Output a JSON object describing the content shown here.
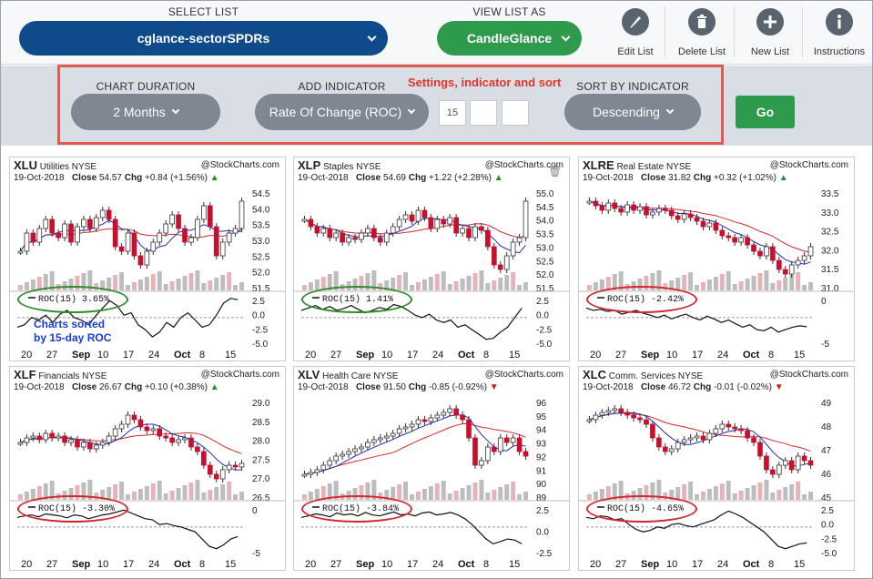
{
  "topbar": {
    "select_list_caption": "SELECT LIST",
    "select_list_value": "cglance-sectorSPDRs",
    "view_as_caption": "VIEW LIST AS",
    "view_as_value": "CandleGlance",
    "tools": [
      {
        "label": "Edit List",
        "icon": "pencil-icon"
      },
      {
        "label": "Delete List",
        "icon": "trash-icon"
      },
      {
        "label": "New List",
        "icon": "plus-icon"
      },
      {
        "label": "Instructions",
        "icon": "info-icon"
      }
    ],
    "colors": {
      "select": "#0f4a8a",
      "view": "#2e9a4c",
      "tool": "#5a6470"
    }
  },
  "settings": {
    "duration_caption": "CHART DURATION",
    "duration_value": "2 Months",
    "indicator_caption": "ADD INDICATOR",
    "indicator_value": "Rate Of Change (ROC)",
    "param1": "15",
    "param2": "",
    "param3": "",
    "sort_caption": "SORT BY INDICATOR",
    "sort_value": "Descending",
    "go_label": "Go",
    "annotation": "Settings, indicator and sort"
  },
  "note": {
    "line1": "Charts sorted",
    "line2": "by 15-day ROC"
  },
  "charts": [
    {
      "sym": "XLU",
      "name": "Utilities",
      "exch": "NYSE",
      "date": "19-Oct-2018",
      "close_label": "Close",
      "close": "54.57",
      "chg_label": "Chg",
      "chg": "+0.84 (+1.56%)",
      "dir": "up",
      "brand": "@StockCharts.com",
      "roc": "ROC(15) 3.65%",
      "oval": "green",
      "price_ticks": [
        "54.5",
        "54.0",
        "53.5",
        "53.0",
        "52.5",
        "52.0",
        "51.5"
      ],
      "roc_ticks": [
        "2.5",
        "0.0",
        "-2.5",
        "-5.0"
      ],
      "x_ticks": [
        "20",
        "27",
        "Sep",
        "10",
        "17",
        "24",
        "Oct",
        "8",
        "15"
      ],
      "trend": [
        0.35,
        0.55,
        0.45,
        0.6,
        0.7,
        0.55,
        0.5,
        0.65,
        0.45,
        0.62,
        0.7,
        0.6,
        0.72,
        0.8,
        0.7,
        0.4,
        0.35,
        0.55,
        0.3,
        0.2,
        0.35,
        0.45,
        0.55,
        0.65,
        0.75,
        0.6,
        0.45,
        0.5,
        0.7,
        0.85,
        0.62,
        0.3,
        0.45,
        0.55,
        0.6,
        0.9
      ],
      "roc_line": [
        0.35,
        0.4,
        0.55,
        0.5,
        0.6,
        0.45,
        0.62,
        0.7,
        0.55,
        0.5,
        0.4,
        0.58,
        0.75,
        0.9,
        0.8,
        0.6,
        0.65,
        0.4,
        0.3,
        0.15,
        0.25,
        0.45,
        0.35,
        0.55,
        0.65,
        0.5,
        0.35,
        0.4,
        0.6,
        0.85,
        0.95,
        0.92
      ]
    },
    {
      "sym": "XLP",
      "name": "Staples",
      "exch": "NYSE",
      "date": "19-Oct-2018",
      "close_label": "Close",
      "close": "54.69",
      "chg_label": "Chg",
      "chg": "+1.22 (+2.28%)",
      "dir": "up",
      "brand": "@StockCharts.com",
      "roc": "ROC(15) 1.41%",
      "oval": "green",
      "price_ticks": [
        "55.0",
        "54.5",
        "54.0",
        "53.5",
        "53.0",
        "52.5",
        "52.0",
        "51.5"
      ],
      "roc_ticks": [
        "2.5",
        "0.0",
        "-2.5",
        "-5.0"
      ],
      "x_ticks": [
        "20",
        "27",
        "Sep",
        "10",
        "17",
        "24",
        "Oct",
        "8",
        "15"
      ],
      "trend": [
        0.7,
        0.62,
        0.55,
        0.6,
        0.5,
        0.55,
        0.45,
        0.5,
        0.48,
        0.55,
        0.6,
        0.5,
        0.45,
        0.55,
        0.62,
        0.7,
        0.75,
        0.68,
        0.8,
        0.72,
        0.6,
        0.7,
        0.65,
        0.72,
        0.55,
        0.6,
        0.5,
        0.62,
        0.58,
        0.4,
        0.2,
        0.15,
        0.3,
        0.45,
        0.5,
        0.9
      ],
      "roc_line": [
        0.7,
        0.75,
        0.8,
        0.72,
        0.78,
        0.7,
        0.74,
        0.8,
        0.72,
        0.65,
        0.7,
        0.76,
        0.72,
        0.82,
        0.78,
        0.7,
        0.6,
        0.55,
        0.62,
        0.5,
        0.45,
        0.5,
        0.35,
        0.4,
        0.3,
        0.2,
        0.1,
        0.12,
        0.25,
        0.35,
        0.55,
        0.75
      ]
    },
    {
      "sym": "XLRE",
      "name": "Real Estate",
      "exch": "NYSE",
      "date": "19-Oct-2018",
      "close_label": "Close",
      "close": "31.82",
      "chg_label": "Chg",
      "chg": "+0.32 (+1.02%)",
      "dir": "up",
      "brand": "@StockCharts.com",
      "roc": "ROC(15) -2.42%",
      "oval": "red",
      "price_ticks": [
        "33.5",
        "33.0",
        "32.5",
        "32.0",
        "31.5",
        "31.0"
      ],
      "roc_ticks": [
        "0",
        "-5"
      ],
      "x_ticks": [
        "20",
        "27",
        "Sep",
        "10",
        "17",
        "24",
        "Oct",
        "8",
        "15"
      ],
      "trend": [
        0.9,
        0.85,
        0.8,
        0.88,
        0.82,
        0.78,
        0.86,
        0.8,
        0.84,
        0.75,
        0.78,
        0.82,
        0.8,
        0.74,
        0.7,
        0.76,
        0.72,
        0.68,
        0.62,
        0.66,
        0.58,
        0.52,
        0.5,
        0.45,
        0.5,
        0.42,
        0.35,
        0.3,
        0.4,
        0.25,
        0.15,
        0.1,
        0.2,
        0.25,
        0.3,
        0.4
      ],
      "roc_line": [
        0.75,
        0.7,
        0.72,
        0.68,
        0.7,
        0.62,
        0.66,
        0.7,
        0.64,
        0.6,
        0.55,
        0.6,
        0.52,
        0.58,
        0.62,
        0.55,
        0.5,
        0.58,
        0.52,
        0.45,
        0.5,
        0.42,
        0.35,
        0.4,
        0.3,
        0.28,
        0.35,
        0.25,
        0.3,
        0.35,
        0.38,
        0.36
      ]
    },
    {
      "sym": "XLF",
      "name": "Financials",
      "exch": "NYSE",
      "date": "19-Oct-2018",
      "close_label": "Close",
      "close": "26.67",
      "chg_label": "Chg",
      "chg": "+0.10 (+0.38%)",
      "dir": "up",
      "brand": "@StockCharts.com",
      "roc": "ROC(15) -3.30%",
      "oval": "red",
      "price_ticks": [
        "29.0",
        "28.5",
        "28.0",
        "27.5",
        "27.0",
        "26.5"
      ],
      "roc_ticks": [
        "0",
        "-5"
      ],
      "x_ticks": [
        "20",
        "27",
        "Sep",
        "10",
        "17",
        "24",
        "Oct",
        "8",
        "15"
      ],
      "trend": [
        0.55,
        0.6,
        0.62,
        0.58,
        0.65,
        0.6,
        0.62,
        0.55,
        0.58,
        0.5,
        0.55,
        0.48,
        0.52,
        0.55,
        0.62,
        0.7,
        0.75,
        0.85,
        0.8,
        0.72,
        0.68,
        0.7,
        0.62,
        0.6,
        0.55,
        0.58,
        0.6,
        0.5,
        0.45,
        0.3,
        0.2,
        0.15,
        0.25,
        0.3,
        0.28,
        0.32
      ],
      "roc_line": [
        0.75,
        0.78,
        0.8,
        0.76,
        0.82,
        0.8,
        0.78,
        0.74,
        0.8,
        0.78,
        0.72,
        0.76,
        0.8,
        0.82,
        0.86,
        0.9,
        0.84,
        0.78,
        0.72,
        0.7,
        0.6,
        0.62,
        0.58,
        0.55,
        0.5,
        0.45,
        0.3,
        0.15,
        0.1,
        0.18,
        0.3,
        0.35
      ]
    },
    {
      "sym": "XLV",
      "name": "Health Care",
      "exch": "NYSE",
      "date": "19-Oct-2018",
      "close_label": "Close",
      "close": "91.50",
      "chg_label": "Chg",
      "chg": "-0.85 (-0.92%)",
      "dir": "down",
      "brand": "@StockCharts.com",
      "roc": "ROC(15) -3.84%",
      "oval": "red",
      "price_ticks": [
        "96",
        "95",
        "94",
        "93",
        "92",
        "91",
        "90",
        "89"
      ],
      "roc_ticks": [
        "2.5",
        "0.0",
        "-2.5"
      ],
      "x_ticks": [
        "20",
        "27",
        "Sep",
        "10",
        "17",
        "24",
        "Oct",
        "8",
        "15"
      ],
      "trend": [
        0.2,
        0.22,
        0.25,
        0.3,
        0.35,
        0.4,
        0.42,
        0.45,
        0.48,
        0.5,
        0.55,
        0.58,
        0.6,
        0.62,
        0.65,
        0.7,
        0.72,
        0.75,
        0.8,
        0.78,
        0.82,
        0.85,
        0.88,
        0.92,
        0.85,
        0.8,
        0.6,
        0.3,
        0.35,
        0.5,
        0.45,
        0.6,
        0.55,
        0.6,
        0.45,
        0.4
      ],
      "roc_line": [
        0.75,
        0.78,
        0.82,
        0.8,
        0.76,
        0.84,
        0.8,
        0.82,
        0.78,
        0.85,
        0.8,
        0.78,
        0.82,
        0.86,
        0.8,
        0.82,
        0.78,
        0.84,
        0.86,
        0.8,
        0.82,
        0.85,
        0.8,
        0.72,
        0.6,
        0.45,
        0.3,
        0.2,
        0.25,
        0.3,
        0.28,
        0.2
      ]
    },
    {
      "sym": "XLC",
      "name": "Comm. Services",
      "exch": "NYSE",
      "date": "19-Oct-2018",
      "close_label": "Close",
      "close": "46.72",
      "chg_label": "Chg",
      "chg": "-0.01 (-0.02%)",
      "dir": "down",
      "brand": "@StockCharts.com",
      "roc": "ROC(15) -4.65%",
      "oval": "red",
      "price_ticks": [
        "49",
        "48",
        "47",
        "46",
        "45"
      ],
      "roc_ticks": [
        "2.5",
        "0.0",
        "-2.5",
        "-5.0"
      ],
      "x_ticks": [
        "20",
        "27",
        "Sep",
        "10",
        "17",
        "24",
        "Oct",
        "8",
        "15"
      ],
      "trend": [
        0.8,
        0.85,
        0.88,
        0.9,
        0.92,
        0.88,
        0.85,
        0.82,
        0.8,
        0.75,
        0.6,
        0.5,
        0.45,
        0.48,
        0.55,
        0.58,
        0.6,
        0.62,
        0.58,
        0.65,
        0.7,
        0.75,
        0.72,
        0.7,
        0.68,
        0.6,
        0.55,
        0.4,
        0.25,
        0.2,
        0.3,
        0.35,
        0.25,
        0.4,
        0.35,
        0.3
      ],
      "roc_line": [
        0.75,
        0.72,
        0.78,
        0.76,
        0.7,
        0.72,
        0.6,
        0.5,
        0.45,
        0.48,
        0.55,
        0.52,
        0.6,
        0.62,
        0.58,
        0.55,
        0.6,
        0.65,
        0.7,
        0.8,
        0.88,
        0.82,
        0.75,
        0.65,
        0.55,
        0.45,
        0.3,
        0.15,
        0.1,
        0.15,
        0.2,
        0.22
      ]
    }
  ]
}
